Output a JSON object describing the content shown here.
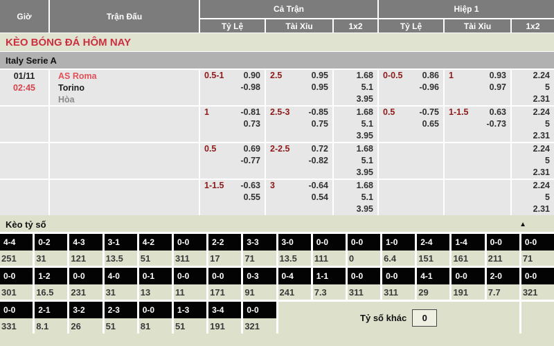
{
  "table_header": {
    "time": "Giờ",
    "match": "Trận Đấu",
    "full_time": "Cả Trận",
    "first_half": "Hiệp 1",
    "handicap": "Tỷ Lệ",
    "over_under": "Tài Xỉu",
    "one_x_two": "1x2"
  },
  "page_title": "KÈO BÓNG ĐÁ HÔM NAY",
  "league_name": "Italy Serie A",
  "match": {
    "date": "01/11",
    "time": "02:45",
    "home": "AS Roma",
    "away": "Torino",
    "draw": "Hòa"
  },
  "odds_rows": [
    {
      "ft_hdp": {
        "line": "0.5-1",
        "v1": "0.90",
        "v2": "-0.98"
      },
      "ft_ou": {
        "line": "2.5",
        "v1": "0.95",
        "v2": "0.95"
      },
      "ft_1x2": [
        "1.68",
        "5.1",
        "3.95"
      ],
      "h1_hdp": {
        "line": "0-0.5",
        "v1": "0.86",
        "v2": "-0.96"
      },
      "h1_ou": {
        "line": "1",
        "v1": "0.93",
        "v2": "0.97"
      },
      "h1_1x2": [
        "2.24",
        "5",
        "2.31"
      ]
    },
    {
      "ft_hdp": {
        "line": "1",
        "v1": "-0.81",
        "v2": "0.73"
      },
      "ft_ou": {
        "line": "2.5-3",
        "v1": "-0.85",
        "v2": "0.75"
      },
      "ft_1x2": [
        "1.68",
        "5.1",
        "3.95"
      ],
      "h1_hdp": {
        "line": "0.5",
        "v1": "-0.75",
        "v2": "0.65"
      },
      "h1_ou": {
        "line": "1-1.5",
        "v1": "0.63",
        "v2": "-0.73"
      },
      "h1_1x2": [
        "2.24",
        "5",
        "2.31"
      ]
    },
    {
      "ft_hdp": {
        "line": "0.5",
        "v1": "0.69",
        "v2": "-0.77"
      },
      "ft_ou": {
        "line": "2-2.5",
        "v1": "0.72",
        "v2": "-0.82"
      },
      "ft_1x2": [
        "1.68",
        "5.1",
        "3.95"
      ],
      "h1_hdp": {
        "line": "",
        "v1": "",
        "v2": ""
      },
      "h1_ou": {
        "line": "",
        "v1": "",
        "v2": ""
      },
      "h1_1x2": [
        "2.24",
        "5",
        "2.31"
      ]
    },
    {
      "ft_hdp": {
        "line": "1-1.5",
        "v1": "-0.63",
        "v2": "0.55"
      },
      "ft_ou": {
        "line": "3",
        "v1": "-0.64",
        "v2": "0.54"
      },
      "ft_1x2": [
        "1.68",
        "5.1",
        "3.95"
      ],
      "h1_hdp": {
        "line": "",
        "v1": "",
        "v2": ""
      },
      "h1_ou": {
        "line": "",
        "v1": "",
        "v2": ""
      },
      "h1_1x2": [
        "2.24",
        "5",
        "2.31"
      ]
    }
  ],
  "score_board": {
    "title": "Kèo tỷ số",
    "collapse_icon": "▲",
    "other_score_label": "Tỷ số khác",
    "other_score_value": "0",
    "rows": [
      [
        {
          "s": "4-4",
          "o": "251"
        },
        {
          "s": "0-2",
          "o": "31"
        },
        {
          "s": "4-3",
          "o": "121"
        },
        {
          "s": "3-1",
          "o": "13.5"
        },
        {
          "s": "4-2",
          "o": "51"
        },
        {
          "s": "0-0",
          "o": "311"
        },
        {
          "s": "2-2",
          "o": "17"
        },
        {
          "s": "3-3",
          "o": "71"
        },
        {
          "s": "3-0",
          "o": "13.5"
        },
        {
          "s": "0-0",
          "o": "111"
        },
        {
          "s": "0-0",
          "o": "0"
        },
        {
          "s": "1-0",
          "o": "6.4"
        },
        {
          "s": "2-4",
          "o": "151"
        },
        {
          "s": "1-4",
          "o": "161"
        },
        {
          "s": "0-0",
          "o": "211"
        },
        {
          "s": "0-0",
          "o": "71"
        }
      ],
      [
        {
          "s": "0-0",
          "o": "301"
        },
        {
          "s": "1-2",
          "o": "16.5"
        },
        {
          "s": "0-0",
          "o": "231"
        },
        {
          "s": "4-0",
          "o": "31"
        },
        {
          "s": "0-1",
          "o": "13"
        },
        {
          "s": "0-0",
          "o": "11"
        },
        {
          "s": "0-0",
          "o": "171"
        },
        {
          "s": "0-3",
          "o": "91"
        },
        {
          "s": "0-4",
          "o": "241"
        },
        {
          "s": "1-1",
          "o": "7.3"
        },
        {
          "s": "0-0",
          "o": "311"
        },
        {
          "s": "0-0",
          "o": "311"
        },
        {
          "s": "4-1",
          "o": "29"
        },
        {
          "s": "0-0",
          "o": "191"
        },
        {
          "s": "2-0",
          "o": "7.7"
        },
        {
          "s": "0-0",
          "o": "321"
        }
      ],
      [
        {
          "s": "0-0",
          "o": "331"
        },
        {
          "s": "2-1",
          "o": "8.1"
        },
        {
          "s": "3-2",
          "o": "26"
        },
        {
          "s": "2-3",
          "o": "51"
        },
        {
          "s": "0-0",
          "o": "81"
        },
        {
          "s": "1-3",
          "o": "51"
        },
        {
          "s": "3-4",
          "o": "191"
        },
        {
          "s": "0-0",
          "o": "321"
        }
      ]
    ]
  },
  "colors": {
    "header_bg": "#7c7c7c",
    "page_green": "#dde1cc",
    "title_red": "#cc2f3e",
    "league_bar": "#b1b1b1",
    "row_bg": "#e7e7e7",
    "handicap_red": "#8e1a1a",
    "home_team_red": "#e25059",
    "score_chip_black": "#030303"
  }
}
